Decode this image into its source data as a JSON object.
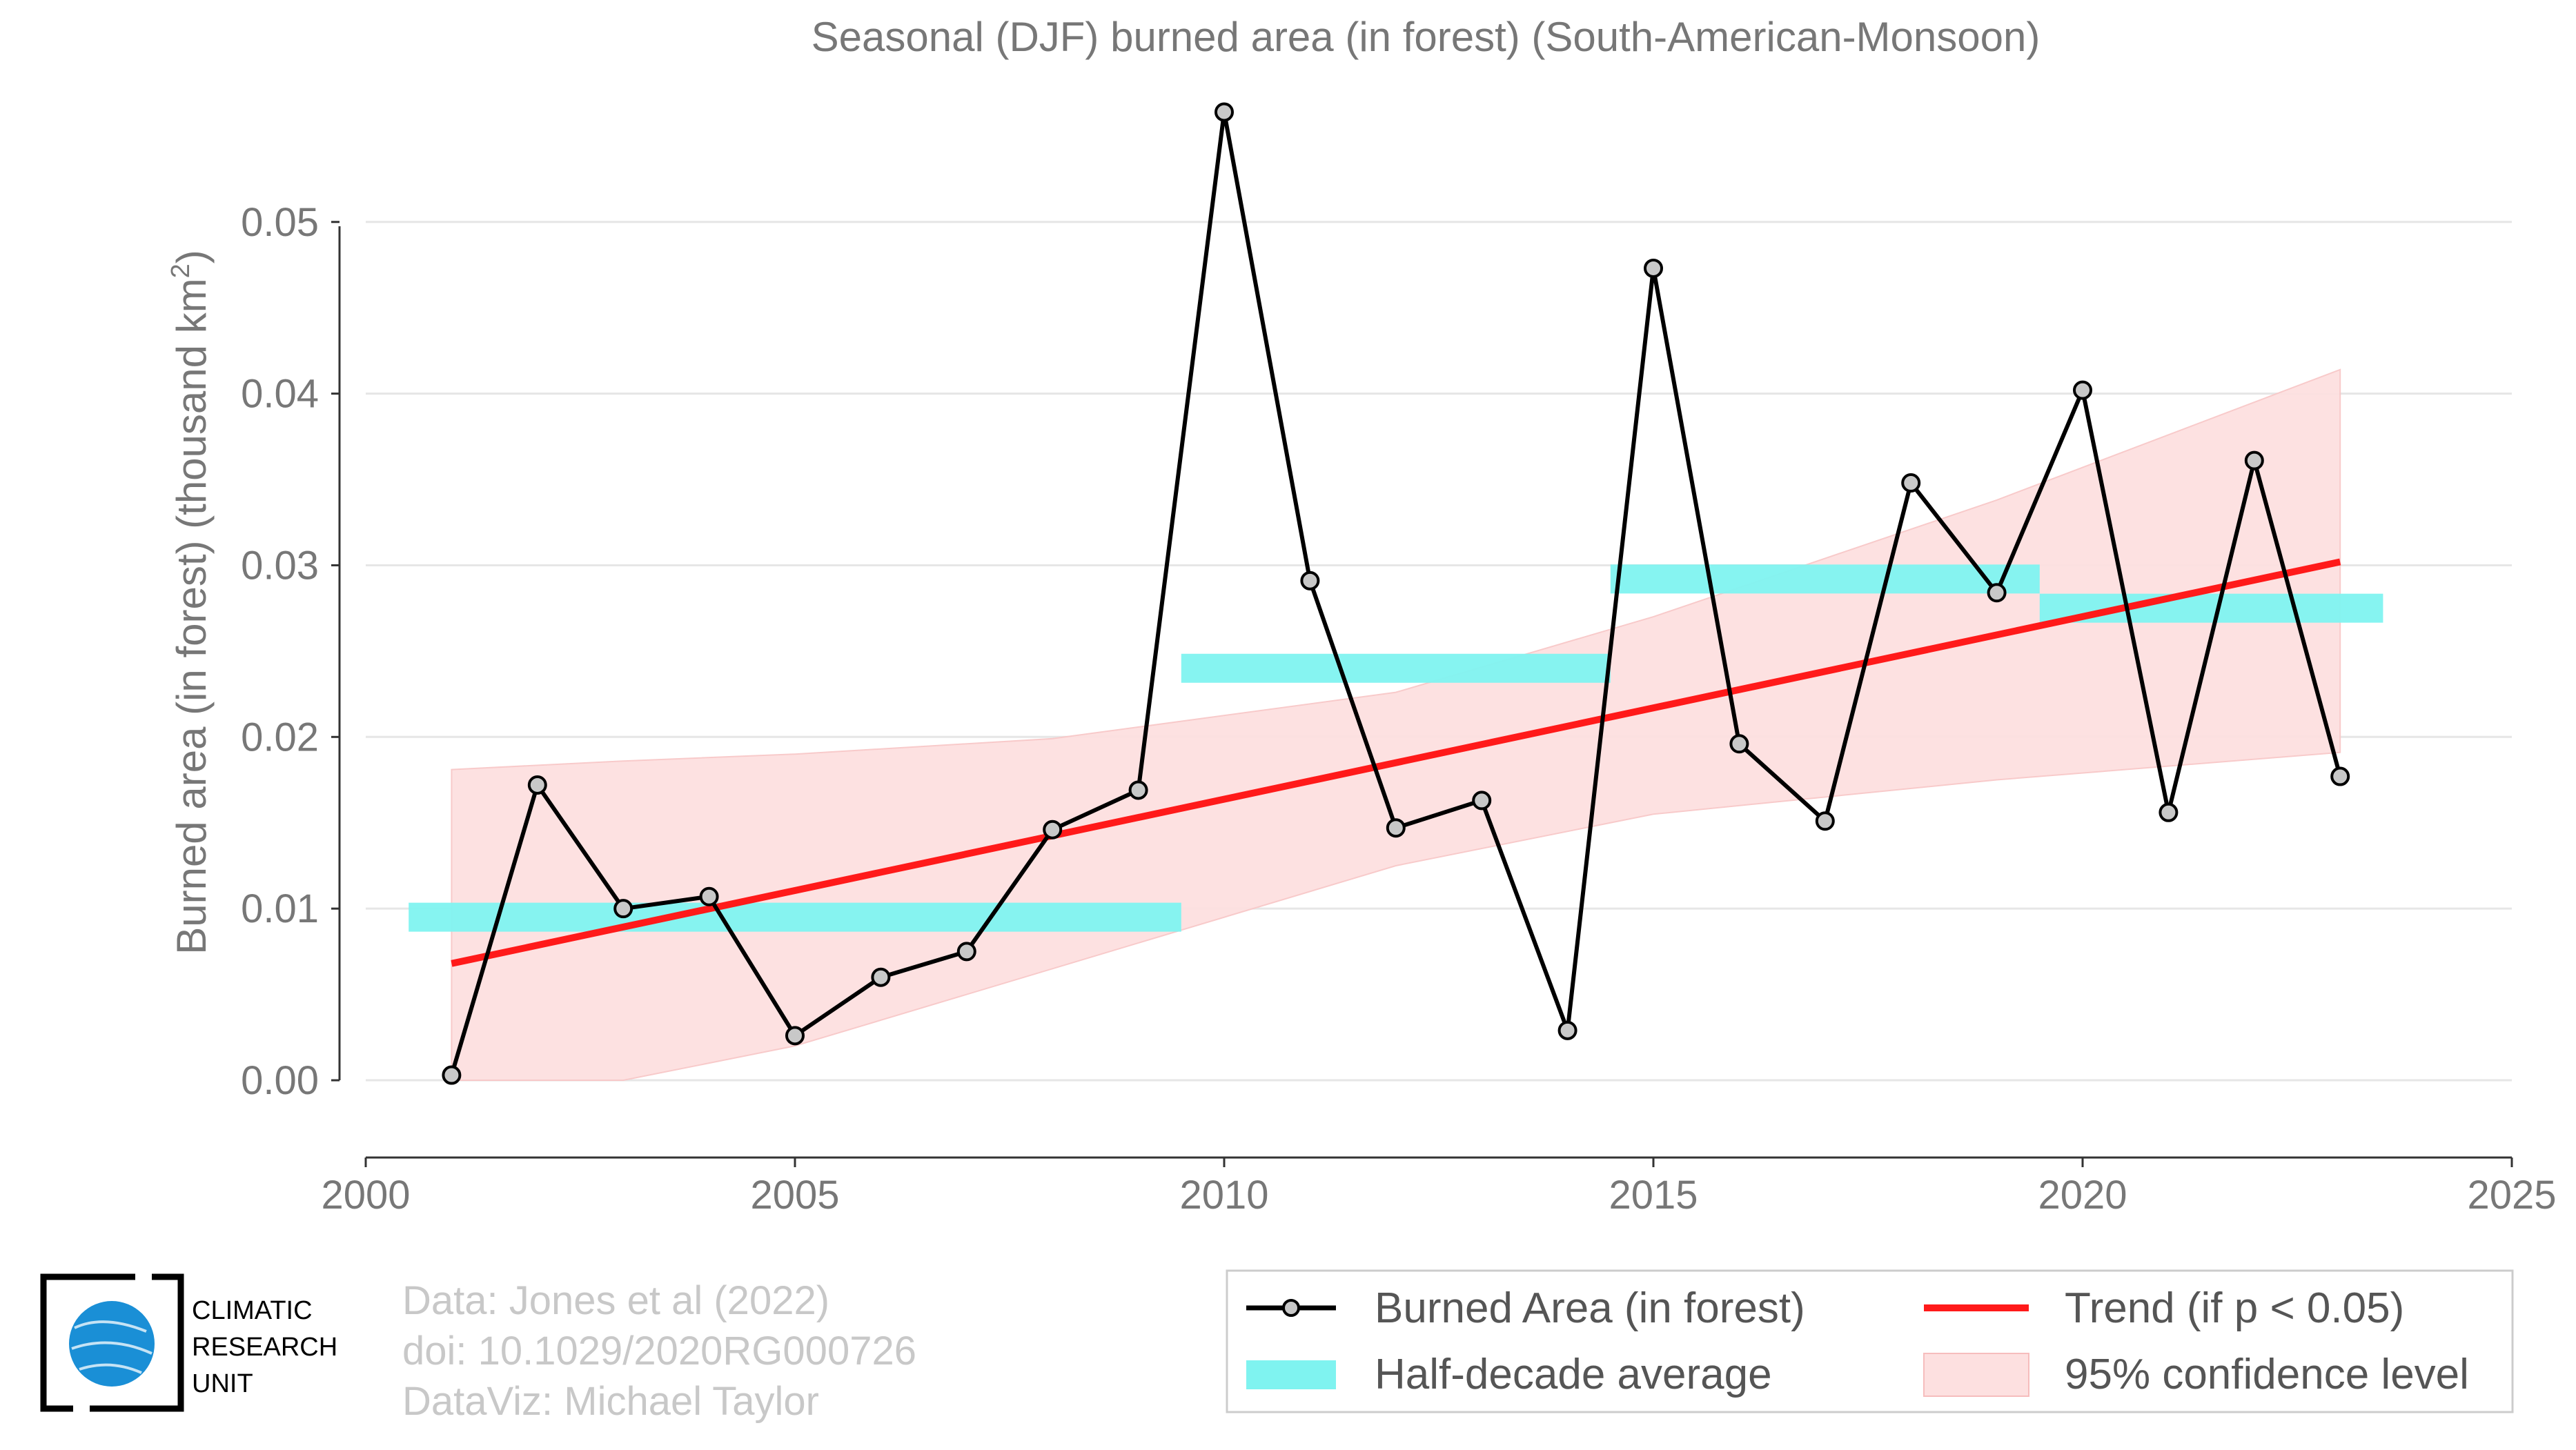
{
  "chart_data": {
    "type": "line",
    "title": "Seasonal (DJF) burned area (in forest) (South-American-Monsoon)",
    "ylabel": "Burned area (in forest) (thousand km",
    "ylabel_sup": "2",
    "ylabel_end": ")",
    "xlim": [
      2000,
      2025
    ],
    "ylim": [
      -0.0045,
      0.0565
    ],
    "x_ticks": [
      2000,
      2005,
      2010,
      2015,
      2020,
      2025
    ],
    "y_ticks": [
      0.0,
      0.01,
      0.02,
      0.03,
      0.04,
      0.05
    ],
    "y_tick_labels": [
      "0.00",
      "0.01",
      "0.02",
      "0.03",
      "0.04",
      "0.05"
    ],
    "grid": "horizontal",
    "legend_position": "bottom-right",
    "series": [
      {
        "name": "Burned Area (in forest)",
        "color": "#000000",
        "marker_color": "#c8c8c8",
        "x": [
          2001,
          2002,
          2003,
          2004,
          2005,
          2006,
          2007,
          2008,
          2009,
          2010,
          2011,
          2012,
          2013,
          2014,
          2015,
          2016,
          2017,
          2018,
          2019,
          2020,
          2021,
          2022,
          2023
        ],
        "y": [
          0.0003,
          0.0172,
          0.01,
          0.0107,
          0.0026,
          0.006,
          0.0075,
          0.0146,
          0.0169,
          0.0564,
          0.0291,
          0.0147,
          0.0163,
          0.0029,
          0.0473,
          0.0196,
          0.0151,
          0.0348,
          0.0284,
          0.0402,
          0.0156,
          0.0361,
          0.0177
        ]
      }
    ],
    "half_decade_average": {
      "name": "Half-decade average",
      "color": "#7ff3f0",
      "segments": [
        {
          "x": [
            2000.5,
            2009.5
          ],
          "y": 0.0095
        },
        {
          "x": [
            2009.5,
            2014.5
          ],
          "y": 0.024
        },
        {
          "x": [
            2014.5,
            2019.5
          ],
          "y": 0.0292
        },
        {
          "x": [
            2019.5,
            2023.5
          ],
          "y": 0.0275
        }
      ]
    },
    "trend": {
      "name": "Trend (if p < 0.05)",
      "color": "#ff1a1a",
      "x": [
        2001,
        2023
      ],
      "y": [
        0.0068,
        0.0302
      ]
    },
    "confidence": {
      "name": "95% confidence level",
      "color": "#fde0e0",
      "x": [
        2001,
        2003,
        2005,
        2008,
        2012,
        2015,
        2019,
        2023
      ],
      "upper": [
        0.0181,
        0.0186,
        0.019,
        0.0199,
        0.0226,
        0.027,
        0.0338,
        0.0414
      ],
      "lower": [
        0.0,
        0.0,
        0.002,
        0.0065,
        0.0125,
        0.0155,
        0.0175,
        0.0191
      ]
    }
  },
  "credits": {
    "line1": "Data: Jones et al (2022)",
    "line2": "doi: 10.1029/2020RG000726",
    "line3": "DataViz: Michael Taylor"
  },
  "logo": {
    "line1": "CLIMATIC",
    "line2": "RESEARCH",
    "line3": "UNIT",
    "icon": "globe-icon"
  }
}
